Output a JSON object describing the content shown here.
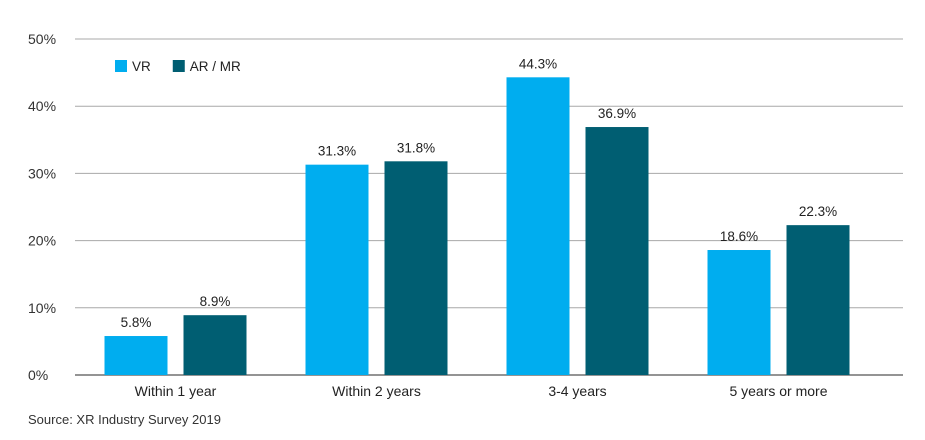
{
  "chart_data": {
    "type": "bar",
    "categories": [
      "Within 1 year",
      "Within 2 years",
      "3-4 years",
      "5 years or more"
    ],
    "series": [
      {
        "name": "VR",
        "values": [
          5.8,
          31.3,
          44.3,
          18.6
        ],
        "labels": [
          "5.8%",
          "31.3%",
          "44.3%",
          "18.6%"
        ],
        "color": "#00adef"
      },
      {
        "name": "AR / MR",
        "values": [
          8.9,
          31.8,
          36.9,
          22.3
        ],
        "labels": [
          "8.9%",
          "31.8%",
          "36.9%",
          "22.3%"
        ],
        "color": "#005e72"
      }
    ],
    "ylim": [
      0,
      50
    ],
    "yticks": [
      0,
      10,
      20,
      30,
      40,
      50
    ],
    "ytick_labels": [
      "0%",
      "10%",
      "20%",
      "30%",
      "40%",
      "50%"
    ],
    "grid": true,
    "legend_position": "top-left"
  },
  "source_text": "Source: XR Industry Survey 2019"
}
